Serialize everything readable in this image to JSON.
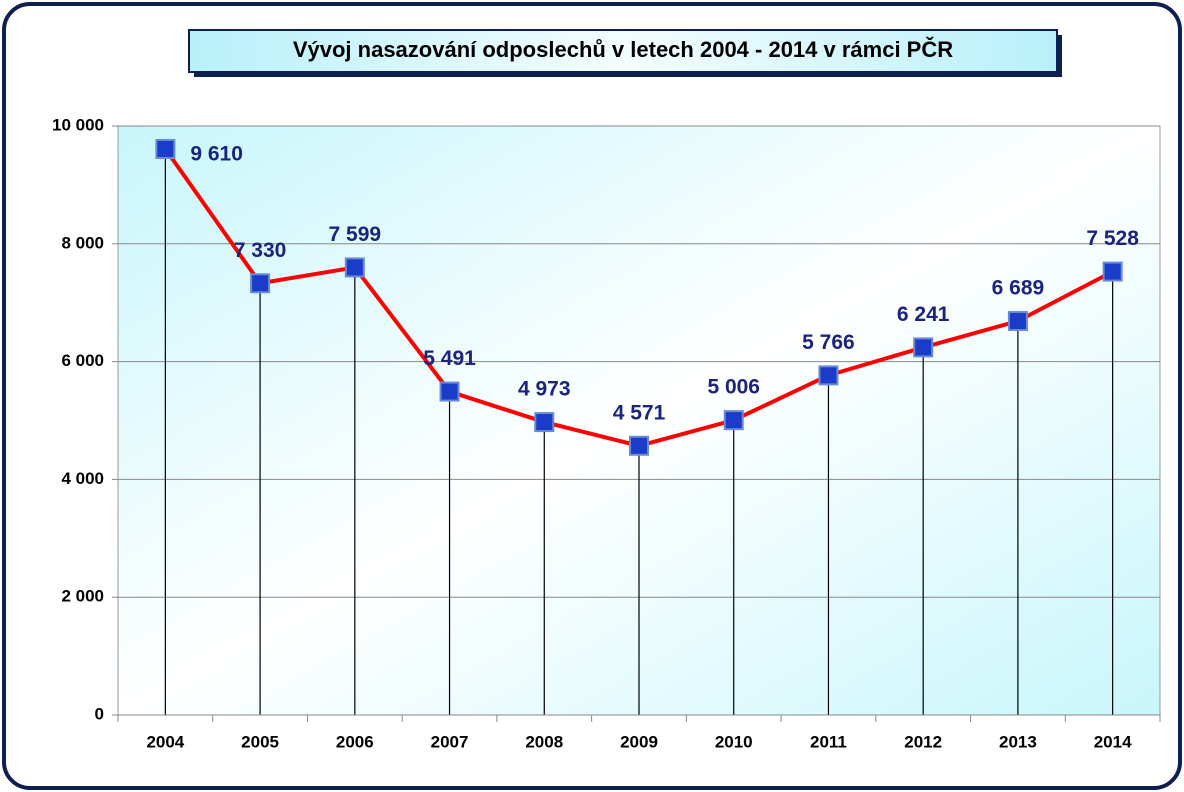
{
  "chart_data": {
    "type": "line",
    "title": "Vývoj nasazování odposlechů v letech 2004 - 2014  v rámci PČR",
    "categories": [
      "2004",
      "2005",
      "2006",
      "2007",
      "2008",
      "2009",
      "2010",
      "2011",
      "2012",
      "2013",
      "2014"
    ],
    "values": [
      9610,
      7330,
      7599,
      5491,
      4973,
      4571,
      5006,
      5766,
      6241,
      6689,
      7528
    ],
    "value_labels": [
      "9 610",
      "7 330",
      "7 599",
      "5 491",
      "4 973",
      "4 571",
      "5 006",
      "5 766",
      "6 241",
      "6 689",
      "7 528"
    ],
    "color": "#ff0000",
    "marker_color": "#1a3cc8",
    "drop_lines": true,
    "ylim": [
      0,
      10000
    ],
    "yticks": [
      0,
      {
        "value": 2000,
        "label": "2 000"
      },
      {
        "value": 4000,
        "label": "4 000"
      },
      {
        "value": 6000,
        "label": "6 000"
      },
      {
        "value": 8000,
        "label": "8 000"
      },
      {
        "value": 10000,
        "label": "10 000"
      }
    ],
    "grid": true
  }
}
